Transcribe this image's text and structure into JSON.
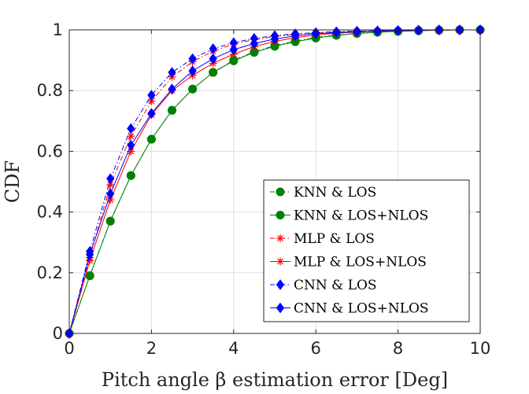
{
  "chart_data": {
    "type": "line",
    "xlabel": "Pitch angle β estimation error [Deg]",
    "ylabel": "CDF",
    "xlim": [
      0,
      10
    ],
    "ylim": [
      0,
      1
    ],
    "xticks": [
      "0",
      "2",
      "4",
      "6",
      "8",
      "10"
    ],
    "yticks": [
      "0",
      "0.2",
      "0.4",
      "0.6",
      "0.8",
      "1"
    ],
    "grid": true,
    "legend_position": "bottom-right",
    "x": [
      0,
      0.5,
      1,
      1.5,
      2,
      2.5,
      3,
      3.5,
      4,
      4.5,
      5,
      5.5,
      6,
      6.5,
      7,
      7.5,
      8,
      8.5,
      9,
      9.5,
      10
    ],
    "series": [
      {
        "name": "KNN & LOS",
        "color": "#008000",
        "marker": "circle",
        "dash": "dashdot",
        "values": [
          0,
          0.19,
          0.37,
          0.52,
          0.64,
          0.735,
          0.805,
          0.86,
          0.9,
          0.928,
          0.948,
          0.963,
          0.975,
          0.983,
          0.989,
          0.993,
          0.996,
          0.998,
          0.999,
          1.0,
          1.0
        ]
      },
      {
        "name": "KNN & LOS+NLOS",
        "color": "#008000",
        "marker": "circle",
        "dash": "solid",
        "values": [
          0,
          0.19,
          0.37,
          0.52,
          0.64,
          0.735,
          0.805,
          0.86,
          0.898,
          0.926,
          0.946,
          0.961,
          0.973,
          0.982,
          0.988,
          0.992,
          0.995,
          0.997,
          0.999,
          1.0,
          1.0
        ]
      },
      {
        "name": "MLP & LOS",
        "color": "#ff0000",
        "marker": "star",
        "dash": "dashdot",
        "values": [
          0,
          0.25,
          0.49,
          0.65,
          0.765,
          0.845,
          0.895,
          0.93,
          0.953,
          0.968,
          0.978,
          0.985,
          0.99,
          0.993,
          0.995,
          0.997,
          0.998,
          0.999,
          1.0,
          1.0,
          1.0
        ]
      },
      {
        "name": "MLP & LOS+NLOS",
        "color": "#ff0000",
        "marker": "star",
        "dash": "solid",
        "values": [
          0,
          0.24,
          0.44,
          0.6,
          0.72,
          0.8,
          0.85,
          0.89,
          0.92,
          0.945,
          0.962,
          0.974,
          0.983,
          0.989,
          0.993,
          0.996,
          0.997,
          0.998,
          0.999,
          1.0,
          1.0
        ]
      },
      {
        "name": "CNN & LOS",
        "color": "#0000ff",
        "marker": "diamond",
        "dash": "dashdot",
        "values": [
          0,
          0.27,
          0.51,
          0.675,
          0.785,
          0.86,
          0.905,
          0.938,
          0.958,
          0.972,
          0.981,
          0.987,
          0.991,
          0.994,
          0.996,
          0.997,
          0.998,
          0.999,
          1.0,
          1.0,
          1.0
        ]
      },
      {
        "name": "CNN & LOS+NLOS",
        "color": "#0000ff",
        "marker": "diamond",
        "dash": "solid",
        "values": [
          0,
          0.26,
          0.46,
          0.62,
          0.725,
          0.805,
          0.865,
          0.905,
          0.935,
          0.955,
          0.97,
          0.98,
          0.987,
          0.991,
          0.994,
          0.996,
          0.998,
          0.999,
          1.0,
          1.0,
          1.0
        ]
      }
    ]
  }
}
